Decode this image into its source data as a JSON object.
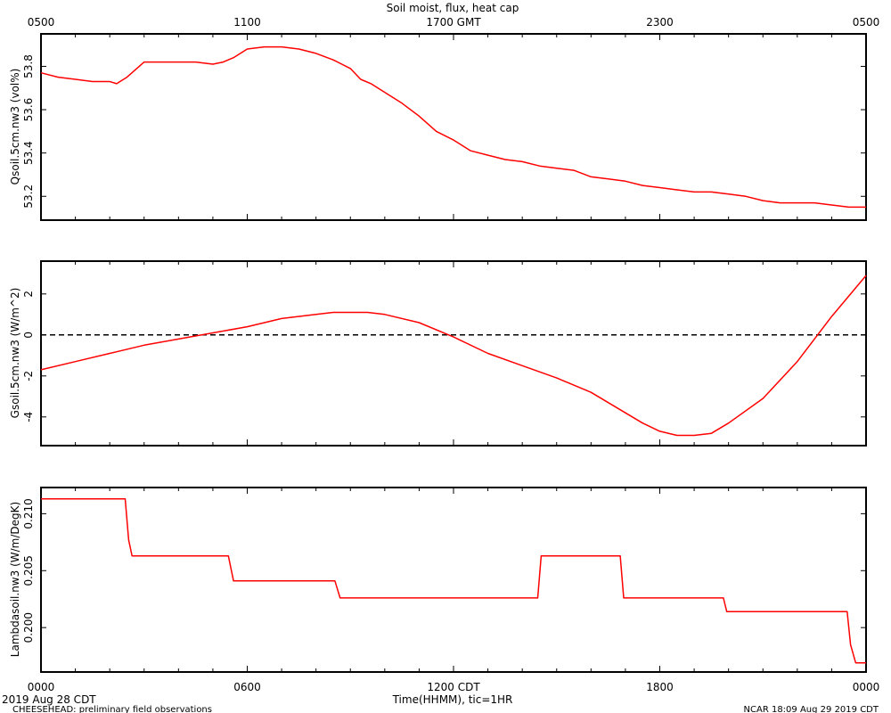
{
  "title": "Soil moist, flux, heat cap",
  "x_axis": {
    "label": "Time(HHMM), tic=1HR",
    "bottom_ticks": [
      "0000",
      "0600",
      "1200 CDT",
      "1800",
      "0000"
    ],
    "top_ticks": [
      "0500",
      "1100",
      "1700 GMT",
      "2300",
      "0500"
    ],
    "start_date": "2019 Aug 28 CDT"
  },
  "footer": {
    "left": "CHEESEHEAD: preliminary field observations",
    "right": "NCAR 18:09 Aug 29 2019 CDT"
  },
  "colors": {
    "series": "#ff0000",
    "axis": "#000000",
    "zero_line": "#000000"
  },
  "chart_data": [
    {
      "type": "line",
      "ylabel": "Qsoil.5cm.nw3 (vol%)",
      "ylim": [
        53.09,
        53.95
      ],
      "yticks": [
        53.2,
        53.4,
        53.6,
        53.8
      ],
      "ytick_labels": [
        "53.2",
        "53.4",
        "53.6",
        "53.8"
      ],
      "x_unit": "hours CDT",
      "xlim": [
        0,
        24
      ],
      "x": [
        0,
        0.5,
        1,
        1.5,
        2,
        2.2,
        2.5,
        3,
        3.5,
        4,
        4.5,
        5,
        5.3,
        5.6,
        6,
        6.5,
        7,
        7.5,
        8,
        8.5,
        9,
        9.3,
        9.6,
        10,
        10.5,
        11,
        11.5,
        12,
        12.5,
        13,
        13.5,
        14,
        14.5,
        15,
        15.5,
        16,
        16.5,
        17,
        17.5,
        18,
        18.5,
        19,
        19.5,
        20,
        20.5,
        21,
        21.5,
        22,
        22.5,
        23,
        23.5,
        24
      ],
      "y": [
        53.77,
        53.75,
        53.74,
        53.73,
        53.73,
        53.72,
        53.75,
        53.82,
        53.82,
        53.82,
        53.82,
        53.81,
        53.82,
        53.84,
        53.88,
        53.89,
        53.89,
        53.88,
        53.86,
        53.83,
        53.79,
        53.74,
        53.72,
        53.68,
        53.63,
        53.57,
        53.5,
        53.46,
        53.41,
        53.39,
        53.37,
        53.36,
        53.34,
        53.33,
        53.32,
        53.29,
        53.28,
        53.27,
        53.25,
        53.24,
        53.23,
        53.22,
        53.22,
        53.21,
        53.2,
        53.18,
        53.17,
        53.17,
        53.17,
        53.16,
        53.15,
        53.15
      ]
    },
    {
      "type": "line",
      "ylabel": "Gsoil.5cm.nw3 (W/m^2)",
      "ylim": [
        -5.4,
        3.6
      ],
      "yticks": [
        -4,
        -2,
        0,
        2
      ],
      "ytick_labels": [
        "-4",
        "-2",
        "0",
        "2"
      ],
      "reference_line": 0,
      "x_unit": "hours CDT",
      "xlim": [
        0,
        24
      ],
      "x": [
        0,
        1,
        2,
        3,
        4,
        5,
        6,
        7,
        8,
        8.5,
        9,
        9.5,
        10,
        11,
        12,
        13,
        14,
        15,
        16,
        17,
        17.5,
        18,
        18.5,
        19,
        19.5,
        20,
        21,
        22,
        23,
        24
      ],
      "y": [
        -1.7,
        -1.3,
        -0.9,
        -0.5,
        -0.2,
        0.1,
        0.4,
        0.8,
        1.0,
        1.1,
        1.1,
        1.1,
        1.0,
        0.6,
        -0.1,
        -0.9,
        -1.5,
        -2.1,
        -2.8,
        -3.8,
        -4.3,
        -4.7,
        -4.9,
        -4.9,
        -4.8,
        -4.3,
        -3.1,
        -1.3,
        0.9,
        2.9
      ]
    },
    {
      "type": "line",
      "ylabel": "Lambdasoil.nw3 (W/m/DegK)",
      "ylim": [
        0.1961,
        0.2123
      ],
      "yticks": [
        0.2,
        0.205,
        0.21
      ],
      "ytick_labels": [
        "0.200",
        "0.205",
        "0.210"
      ],
      "x_unit": "hours CDT",
      "xlim": [
        0,
        24
      ],
      "x": [
        0,
        2.45,
        2.55,
        2.65,
        5.45,
        5.6,
        8.55,
        8.7,
        14.45,
        14.55,
        16.85,
        16.95,
        19.85,
        19.95,
        23.45,
        23.55,
        23.7,
        24
      ],
      "y": [
        0.2113,
        0.2113,
        0.2077,
        0.2063,
        0.2063,
        0.2041,
        0.2041,
        0.2026,
        0.2026,
        0.2063,
        0.2063,
        0.2026,
        0.2026,
        0.2014,
        0.2014,
        0.1985,
        0.1969,
        0.1969
      ]
    }
  ]
}
